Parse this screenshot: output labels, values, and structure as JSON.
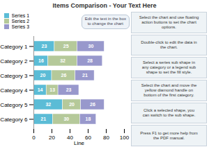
{
  "chart_data": {
    "type": "bar",
    "orientation": "horizontal",
    "stacked": true,
    "title": "Items Comparison - Your Text Here",
    "xlabel": "Line",
    "categories": [
      "Category 6",
      "Category 5",
      "Category 4",
      "Category 3",
      "Category 2",
      "Category 1"
    ],
    "series": [
      {
        "name": "Series 1",
        "color": "#5bbcd6",
        "values": [
          21,
          32,
          14,
          20,
          16,
          23
        ]
      },
      {
        "name": "Series 2",
        "color": "#b5c99a",
        "values": [
          30,
          20,
          13,
          26,
          32,
          25
        ]
      },
      {
        "name": "Series 3",
        "color": "#9898cc",
        "values": [
          18,
          26,
          23,
          21,
          28,
          30
        ]
      }
    ],
    "xlim": [
      0,
      100
    ],
    "xticks": [
      0,
      20,
      40,
      60,
      80,
      100
    ],
    "data_labels": true,
    "legend": "top-left",
    "annotations": [
      "Edit the text in the box\nto change the chart",
      "Select the chart and use floating\naction buttons to set the chart\noptions.",
      "Double-click to edit the data in\nthe chart.",
      "Select a series sub shape in\nany category or a legend sub\nshape to set the fill style.",
      "Select the chart and move the\nyellow diamond handle on\nbottom of the first category.",
      "Click a selected shape, you\ncan switch to the sub shape.",
      "Press F1 to get more help from\nthe PDF manual."
    ]
  }
}
